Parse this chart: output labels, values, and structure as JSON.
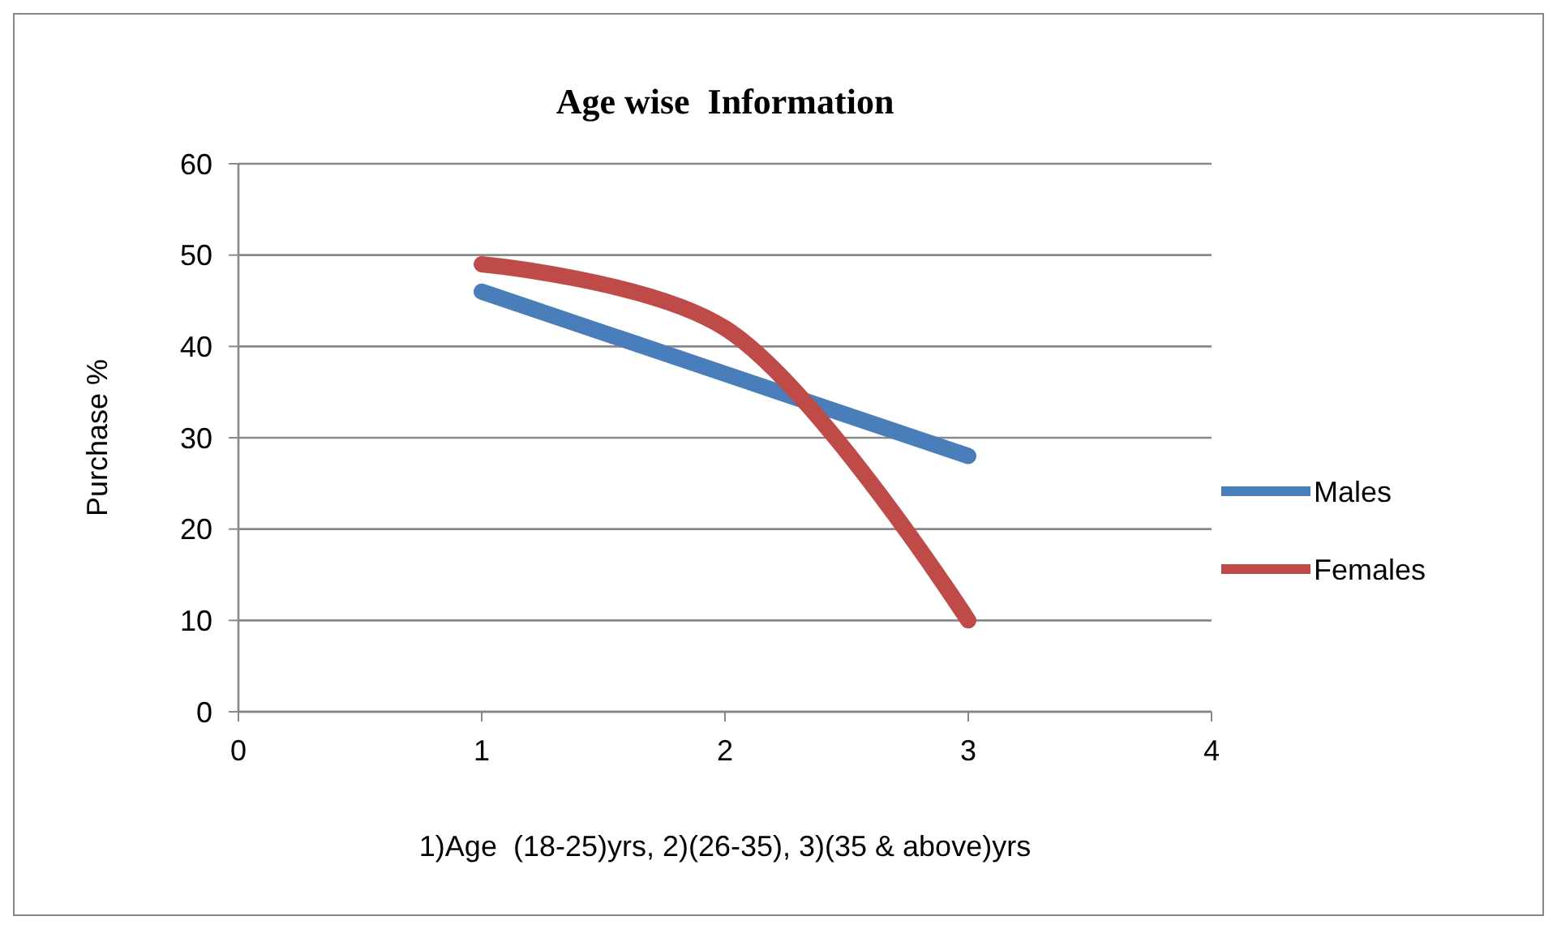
{
  "chart_data": {
    "type": "line",
    "title": "Age wise  Information",
    "xlabel": "1)Age  (18-25)yrs, 2)(26-35), 3)(35 & above)yrs",
    "ylabel": "Purchase %",
    "x": [
      1,
      2,
      3
    ],
    "series": [
      {
        "name": "Males",
        "color": "#4a7ebb",
        "values": [
          46,
          37,
          28
        ]
      },
      {
        "name": "Females",
        "color": "#be4b48",
        "values": [
          49,
          42,
          10
        ]
      }
    ],
    "xlim": [
      0,
      4
    ],
    "xticks": [
      0,
      1,
      2,
      3,
      4
    ],
    "ylim": [
      0,
      60
    ],
    "yticks": [
      0,
      10,
      20,
      30,
      40,
      50,
      60
    ],
    "grid": "y",
    "legend": "right",
    "marker": "none",
    "line_style": "solid"
  }
}
